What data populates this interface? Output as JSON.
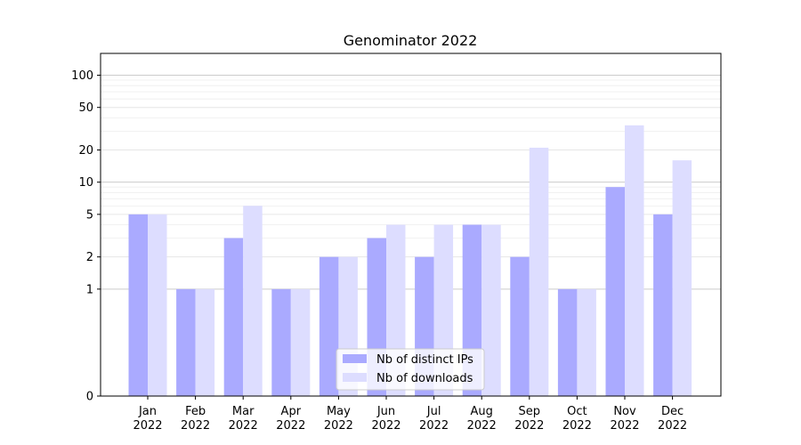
{
  "chart_data": {
    "type": "bar",
    "title": "Genominator 2022",
    "xlabel": "",
    "ylabel": "",
    "y_scale": "symlog",
    "ylim": [
      0,
      160
    ],
    "y_ticks": [
      0,
      1,
      2,
      5,
      10,
      20,
      50,
      100
    ],
    "y_tick_labels": [
      "0",
      "1",
      "2",
      "5",
      "10",
      "20",
      "50",
      "100"
    ],
    "grid": true,
    "legend_position": "bottom-center",
    "categories": [
      [
        "Jan",
        "2022"
      ],
      [
        "Feb",
        "2022"
      ],
      [
        "Mar",
        "2022"
      ],
      [
        "Apr",
        "2022"
      ],
      [
        "May",
        "2022"
      ],
      [
        "Jun",
        "2022"
      ],
      [
        "Jul",
        "2022"
      ],
      [
        "Aug",
        "2022"
      ],
      [
        "Sep",
        "2022"
      ],
      [
        "Oct",
        "2022"
      ],
      [
        "Nov",
        "2022"
      ],
      [
        "Dec",
        "2022"
      ]
    ],
    "series": [
      {
        "name": "Nb of distinct IPs",
        "color": "#aaaaff",
        "values": [
          5,
          1,
          3,
          1,
          2,
          3,
          2,
          4,
          2,
          1,
          9,
          5
        ]
      },
      {
        "name": "Nb of downloads",
        "color": "#ddddff",
        "values": [
          5,
          1,
          6,
          1,
          2,
          4,
          4,
          4,
          21,
          1,
          34,
          16
        ]
      }
    ]
  }
}
